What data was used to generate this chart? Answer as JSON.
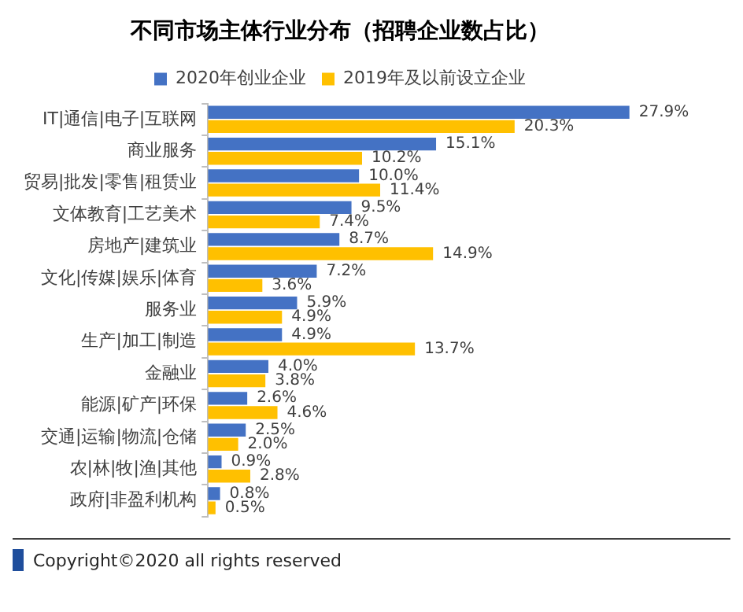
{
  "chart_data": {
    "type": "bar",
    "orientation": "horizontal",
    "title": "不同市场主体行业分布（招聘企业数占比）",
    "categories": [
      "IT|通信|电子|互联网",
      "商业服务",
      "贸易|批发|零售|租赁业",
      "文体教育|工艺美术",
      "房地产|建筑业",
      "文化|传媒|娱乐|体育",
      "服务业",
      "生产|加工|制造",
      "金融业",
      "能源|矿产|环保",
      "交通|运输|物流|仓储",
      "农|林|牧|渔|其他",
      "政府|非盈利机构"
    ],
    "series": [
      {
        "name": "2020年创业企业",
        "color": "#4472c4",
        "values": [
          27.9,
          15.1,
          10.0,
          9.5,
          8.7,
          7.2,
          5.9,
          4.9,
          4.0,
          2.6,
          2.5,
          0.9,
          0.8
        ],
        "value_labels": [
          "27.9%",
          "15.1%",
          "10.0%",
          "9.5%",
          "8.7%",
          "7.2%",
          "5.9%",
          "4.9%",
          "4.0%",
          "2.6%",
          "2.5%",
          "0.9%",
          "0.8%"
        ]
      },
      {
        "name": "2019年及以前设立企业",
        "color": "#ffc000",
        "values": [
          20.3,
          10.2,
          11.4,
          7.4,
          14.9,
          3.6,
          4.9,
          13.7,
          3.8,
          4.6,
          2.0,
          2.8,
          0.5
        ],
        "value_labels": [
          "20.3%",
          "10.2%",
          "11.4%",
          "7.4%",
          "14.9%",
          "3.6%",
          "4.9%",
          "13.7%",
          "3.8%",
          "4.6%",
          "2.0%",
          "2.8%",
          "0.5%"
        ]
      }
    ],
    "legend": "top",
    "tick_labels": "y",
    "annotations": [
      "Copyright©2020 all rights reserved"
    ]
  }
}
